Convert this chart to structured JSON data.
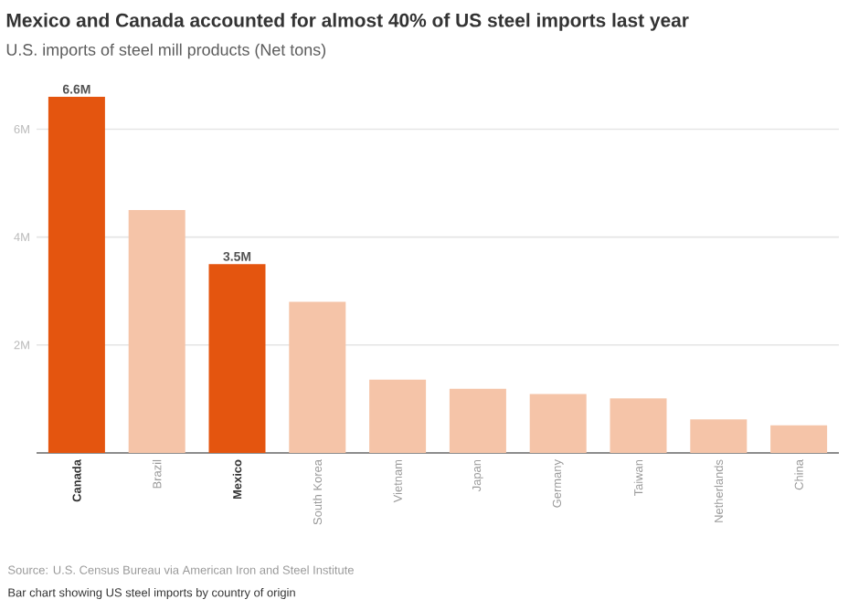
{
  "chart_data": {
    "type": "bar",
    "title": "Mexico and Canada accounted for almost 40% of US steel imports last year",
    "subtitle": "U.S. imports of steel mill products (Net tons)",
    "categories": [
      "Canada",
      "Brazil",
      "Mexico",
      "South Korea",
      "Vietnam",
      "Japan",
      "Germany",
      "Taiwan",
      "Netherlands",
      "China"
    ],
    "values": [
      6600000,
      4500000,
      3500000,
      2800000,
      1360000,
      1190000,
      1090000,
      1010000,
      620000,
      510000
    ],
    "value_labels": [
      "6.6M",
      null,
      "3.5M",
      null,
      null,
      null,
      null,
      null,
      null,
      null
    ],
    "colors": [
      "#e4550f",
      "#f5c4a8",
      "#e4550f",
      "#f5c4a8",
      "#f5c4a8",
      "#f5c4a8",
      "#f5c4a8",
      "#f5c4a8",
      "#f5c4a8",
      "#f5c4a8"
    ],
    "ylim": [
      0,
      6600000
    ],
    "yticks": [
      {
        "value": 2000000,
        "label": "2M"
      },
      {
        "value": 4000000,
        "label": "4M"
      },
      {
        "value": 6000000,
        "label": "6M"
      }
    ],
    "grid": "y",
    "annotations": [
      "Source: U.S. Census Bureau via American Iron and Steel Institute",
      "Bar chart showing US steel imports by country of origin"
    ]
  }
}
